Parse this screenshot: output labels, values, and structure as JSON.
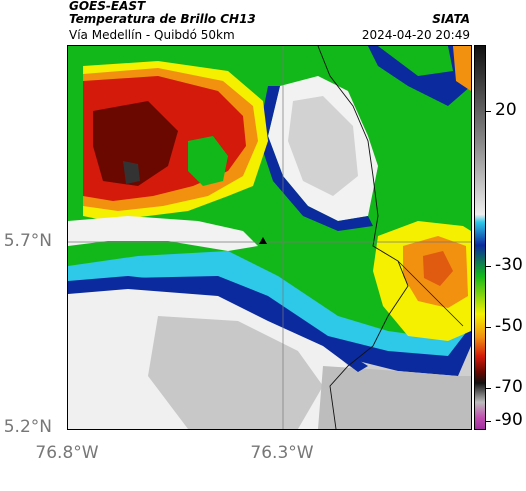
{
  "header": {
    "satellite": "GOES-EAST",
    "product": "Temperatura de Brillo CH13",
    "route": "Vía Medellín - Quibdó 50km",
    "organization": "SIATA",
    "datetime": "2024-04-20 20:49"
  },
  "axes": {
    "latitude_labels": [
      "5.7°N",
      "5.2°N"
    ],
    "longitude_labels": [
      "76.8°W",
      "76.3°W"
    ]
  },
  "colorbar": {
    "tick_labels": [
      "20",
      "-30",
      "-50",
      "-70",
      "-90"
    ],
    "range": [
      -95,
      40
    ],
    "unit_hint": "brightness temperature"
  },
  "palette": {
    "white": "#f2f2f2",
    "gray": "#c9c9c9",
    "cyan": "#2ec8e8",
    "blue": "#0b2a9e",
    "green": "#12b81a",
    "yellow": "#f4f000",
    "orange": "#f29010",
    "red": "#d41a0a",
    "darkred": "#6a0800",
    "black": "#111111",
    "magenta": "#c04fb0"
  },
  "map": {
    "marker": "triangle",
    "grid_lines": true
  }
}
